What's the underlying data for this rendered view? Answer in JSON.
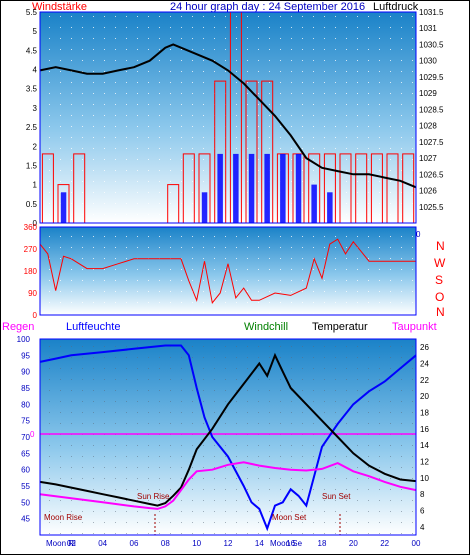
{
  "header": {
    "left_label": "Windstärke",
    "title": "24 hour graph day : 24 September 2016",
    "right_label": "Luftdruck"
  },
  "wind_dir_labels": [
    "N",
    "W",
    "S",
    "O",
    "N"
  ],
  "bottom_header": {
    "regen": "Regen",
    "luftfeuchte": "Luftfeuchte",
    "windchill": "Windchill",
    "temperatur": "Temperatur",
    "taupunkt": "Taupunkt"
  },
  "annotations": {
    "moon_rise": "Moon Rise",
    "sun_rise": "Sun Rise",
    "moon_set": "Moon Set",
    "sun_set": "Sun Set",
    "moon_axis_left": "Moon Ri",
    "moon_axis_mid": "Moon Se"
  },
  "colors": {
    "wind": "#ff0000",
    "gust": "#0000ff",
    "pressure": "#000000",
    "humidity": "#0000ff",
    "temperature": "#000000",
    "dewpoint": "#ff00ff",
    "windchill": "#008000",
    "regen": "#ff00ff",
    "zero_line": "#ff00ff",
    "frame": "#0000ff"
  },
  "chart_data": [
    {
      "type": "bar",
      "title": "24 hour graph day : 24 September 2016",
      "ylabel": "Windstärke",
      "y2label": "Luftdruck",
      "x_ticks": [
        "02",
        "04",
        "06",
        "08",
        "10",
        "12",
        "14",
        "16",
        "18",
        "20",
        "22",
        "00"
      ],
      "ylim": [
        0,
        5.5
      ],
      "y_ticks": [
        0,
        0.5,
        1,
        1.5,
        2,
        2.5,
        3,
        3.5,
        4,
        4.5,
        5,
        5.5
      ],
      "y2lim": [
        1025,
        1031.5
      ],
      "y2_ticks": [
        1025.5,
        1026,
        1026.5,
        1027,
        1027.5,
        1028,
        1028.5,
        1029,
        1029.5,
        1030,
        1030.5,
        1031,
        1031.5
      ],
      "x_hours": [
        0.5,
        1.5,
        2.5,
        3.5,
        4.5,
        5.5,
        6.5,
        7.5,
        8.5,
        9.5,
        10.5,
        11.5,
        12.5,
        13.5,
        14.5,
        15.5,
        16.5,
        17.5,
        18.5,
        19.5,
        20.5,
        21.5,
        22.5,
        23.5
      ],
      "series": [
        {
          "name": "Windstärke",
          "values": [
            1.8,
            1.0,
            1.8,
            0,
            0,
            0,
            0,
            0,
            1.0,
            1.8,
            1.8,
            3.7,
            5.5,
            3.7,
            3.7,
            1.8,
            1.8,
            1.8,
            1.8,
            1.8,
            1.8,
            1.8,
            1.8,
            1.8
          ]
        },
        {
          "name": "Böen",
          "values": [
            0,
            0.8,
            0,
            0,
            0,
            0,
            0,
            0,
            0,
            0,
            0.8,
            1.8,
            1.8,
            1.8,
            1.8,
            1.8,
            1.8,
            1.0,
            0.8,
            0,
            0,
            0,
            0,
            0
          ]
        },
        {
          "name": "Luftdruck",
          "x": [
            0,
            1,
            2,
            3,
            4,
            5,
            6,
            7,
            8,
            8.5,
            9,
            10,
            11,
            12,
            13,
            14,
            15,
            16,
            17,
            18,
            19,
            20,
            21,
            22,
            23,
            24
          ],
          "values": [
            1029.7,
            1029.8,
            1029.7,
            1029.6,
            1029.6,
            1029.7,
            1029.8,
            1030.0,
            1030.4,
            1030.5,
            1030.4,
            1030.2,
            1030.0,
            1029.7,
            1029.3,
            1028.8,
            1028.3,
            1027.7,
            1027.0,
            1026.7,
            1026.6,
            1026.5,
            1026.5,
            1026.4,
            1026.3,
            1026.1
          ]
        }
      ]
    },
    {
      "type": "line",
      "ylabel": "",
      "y_ticks": [
        0,
        90,
        180,
        270,
        360
      ],
      "ylim": [
        0,
        360
      ],
      "x_ticks": [],
      "series": [
        {
          "name": "Windrichtung",
          "x": [
            0,
            0.5,
            1,
            1.5,
            2,
            3,
            4,
            5,
            6,
            7,
            8,
            9,
            9.5,
            10,
            10.5,
            11,
            11.5,
            12,
            12.5,
            13,
            13.5,
            14,
            15,
            16,
            17,
            17.5,
            18,
            18.5,
            19,
            19.5,
            20,
            21,
            22,
            23,
            24
          ],
          "values": [
            290,
            250,
            100,
            240,
            230,
            190,
            190,
            210,
            230,
            230,
            230,
            230,
            140,
            60,
            220,
            50,
            90,
            210,
            70,
            110,
            60,
            60,
            90,
            80,
            110,
            230,
            150,
            290,
            310,
            250,
            300,
            220,
            220,
            220,
            220
          ]
        }
      ]
    },
    {
      "type": "line",
      "ylim": [
        40,
        100
      ],
      "y_ticks": [
        45,
        50,
        55,
        60,
        65,
        70,
        75,
        80,
        85,
        90,
        95,
        100
      ],
      "y2lim": [
        3,
        27
      ],
      "y2_ticks": [
        4,
        6,
        8,
        10,
        12,
        14,
        16,
        18,
        20,
        22,
        24,
        26
      ],
      "regen_tick": "0",
      "x_ticks": [
        "02",
        "04",
        "06",
        "08",
        "10",
        "12",
        "14",
        "16",
        "18",
        "20",
        "22",
        "00"
      ],
      "series": [
        {
          "name": "Luftfeuchte",
          "x": [
            0,
            1,
            2,
            4,
            6,
            8,
            9,
            9.5,
            10,
            10.5,
            11,
            12,
            13,
            13.5,
            14,
            14.5,
            15,
            15.5,
            16,
            16.5,
            17,
            18,
            19,
            20,
            21,
            22,
            23,
            24
          ],
          "values": [
            93,
            94,
            95,
            96,
            97,
            98,
            98,
            95,
            85,
            76,
            70,
            64,
            55,
            50,
            48,
            42,
            49,
            50,
            54,
            52,
            49,
            67,
            74,
            80,
            84,
            87,
            91,
            95
          ]
        },
        {
          "name": "Temperatur",
          "x": [
            0,
            1,
            2,
            3,
            4,
            5,
            6,
            7,
            7.5,
            8,
            8.5,
            9,
            9.5,
            10,
            11,
            12,
            13,
            14,
            14.5,
            15,
            15.5,
            16,
            17,
            18,
            19,
            20,
            21,
            22,
            23,
            24
          ],
          "values": [
            9.5,
            9.2,
            8.8,
            8.4,
            8.0,
            7.6,
            7.2,
            6.8,
            6.6,
            6.9,
            7.8,
            8.8,
            11.0,
            13.5,
            16.0,
            19.0,
            21.5,
            24.0,
            22.5,
            25.0,
            23.0,
            21.0,
            19.0,
            17.0,
            15.0,
            13.0,
            11.5,
            10.5,
            9.8,
            9.6
          ]
        },
        {
          "name": "Taupunkt",
          "x": [
            0,
            2,
            4,
            6,
            7,
            7.5,
            8,
            8.5,
            9,
            9.5,
            10,
            11,
            12,
            13,
            14,
            15,
            16,
            17,
            18,
            19,
            20,
            21,
            22,
            23,
            24
          ],
          "values": [
            8.0,
            7.5,
            7.0,
            6.5,
            6.3,
            6.2,
            6.5,
            7.2,
            8.5,
            9.8,
            10.8,
            11.0,
            11.6,
            11.9,
            11.5,
            11.2,
            11.0,
            10.9,
            11.1,
            11.8,
            10.8,
            10.2,
            9.5,
            8.9,
            8.5
          ]
        }
      ]
    }
  ]
}
